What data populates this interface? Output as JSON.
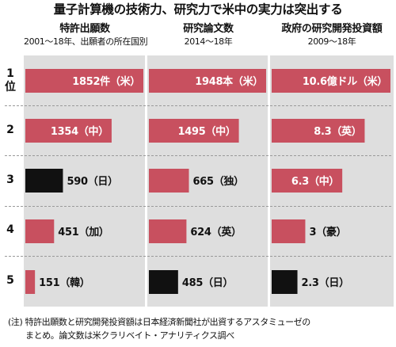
{
  "title": "量子計算機の技術力、研究力で米中の実力は突出する",
  "ranks": [
    "1",
    "2",
    "3",
    "4",
    "5"
  ],
  "rank_suffix_first": "位",
  "columns": [
    {
      "title": "特許出願数",
      "subtitle": "2001～18年、出願者の所在国別"
    },
    {
      "title": "研究論文数",
      "subtitle": "2014～18年"
    },
    {
      "title": "政府の研究開発投資額",
      "subtitle": "2009～18年"
    }
  ],
  "note_lines": [
    "(注) 特許出願数と研究開発投資額は日本経済新聞社が出資するアスタミューゼの",
    "まとめ。論文数は米クラリベイト・アナリティクス調べ"
  ],
  "colors": {
    "default": "#c8505f",
    "japan": "#111111",
    "panel": "#dedede"
  },
  "chart_data": [
    {
      "type": "bar",
      "title": "特許出願数",
      "subtitle": "2001～18年、出願者の所在国別",
      "categories": [
        "米",
        "中",
        "日",
        "加",
        "韓"
      ],
      "values": [
        1852,
        1354,
        590,
        451,
        151
      ],
      "labels": [
        "1852件（米）",
        "1354（中）",
        "590（日）",
        "451（加）",
        "151（韓）"
      ],
      "highlight": [
        false,
        false,
        true,
        false,
        false
      ],
      "label_inside": [
        true,
        true,
        false,
        false,
        false
      ],
      "ylim": [
        0,
        1852
      ]
    },
    {
      "type": "bar",
      "title": "研究論文数",
      "subtitle": "2014～18年",
      "categories": [
        "米",
        "中",
        "独",
        "英",
        "日"
      ],
      "values": [
        1948,
        1495,
        665,
        624,
        485
      ],
      "labels": [
        "1948本（米）",
        "1495（中）",
        "665（独）",
        "624（英）",
        "485（日）"
      ],
      "highlight": [
        false,
        false,
        false,
        false,
        true
      ],
      "label_inside": [
        true,
        true,
        false,
        false,
        false
      ],
      "ylim": [
        0,
        1948
      ]
    },
    {
      "type": "bar",
      "title": "政府の研究開発投資額",
      "subtitle": "2009～18年",
      "categories": [
        "米",
        "英",
        "中",
        "豪",
        "日"
      ],
      "values": [
        10.6,
        8.3,
        6.3,
        3,
        2.3
      ],
      "labels": [
        "10.6億ドル（米）",
        "8.3（英）",
        "6.3（中）",
        "3（豪）",
        "2.3（日）"
      ],
      "highlight": [
        false,
        false,
        false,
        false,
        true
      ],
      "label_inside": [
        true,
        true,
        true,
        false,
        false
      ],
      "ylim": [
        0,
        10.6
      ]
    }
  ]
}
